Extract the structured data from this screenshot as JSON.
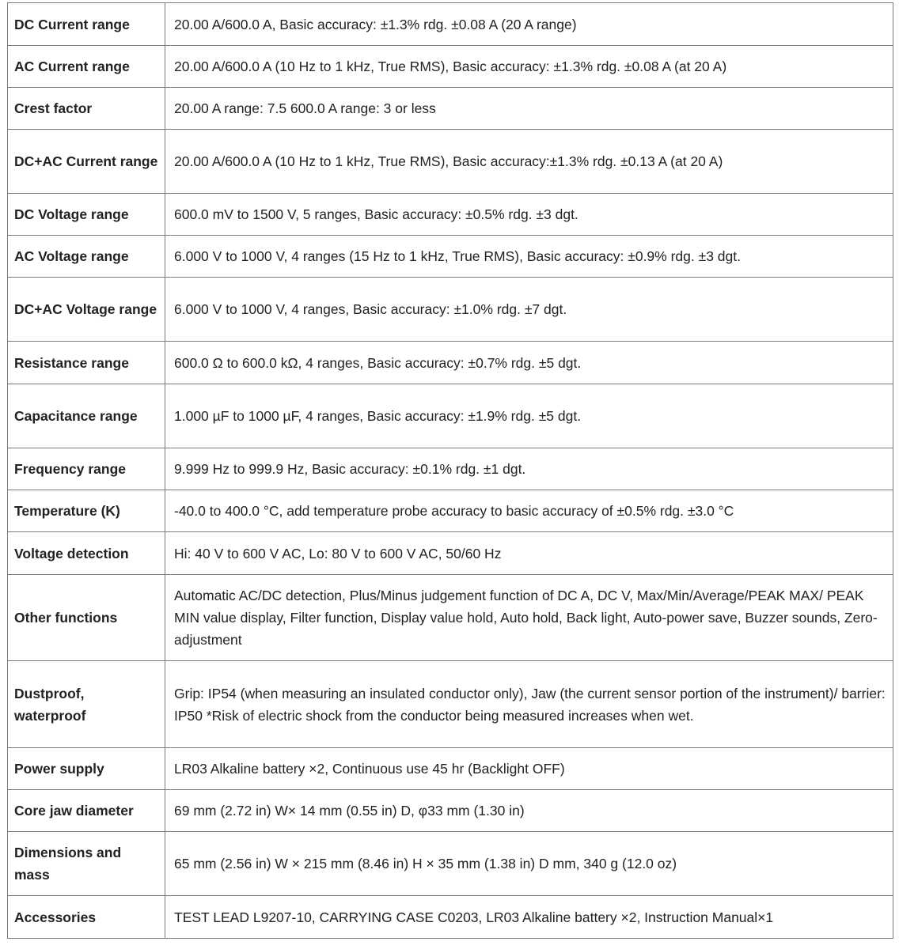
{
  "specs": [
    {
      "label": "DC Current range",
      "value": "20.00 A/600.0 A, Basic accuracy: ±1.3% rdg. ±0.08 A (20 A range)"
    },
    {
      "label": "AC Current range",
      "value": "20.00 A/600.0 A (10 Hz to 1 kHz, True RMS), Basic accuracy: ±1.3% rdg. ±0.08 A (at 20 A)"
    },
    {
      "label": "Crest factor",
      "value": "20.00 A range: 7.5 600.0 A range: 3 or less"
    },
    {
      "label": "DC+AC Current range",
      "value": "20.00 A/600.0 A (10 Hz to 1 kHz, True RMS), Basic accuracy:±1.3% rdg. ±0.13 A (at 20 A)"
    },
    {
      "label": "DC Voltage range",
      "value": "600.0 mV to 1500 V, 5 ranges, Basic accuracy: ±0.5% rdg. ±3 dgt."
    },
    {
      "label": "AC Voltage range",
      "value": "6.000 V to 1000 V, 4 ranges (15 Hz to 1 kHz, True RMS), Basic accuracy: ±0.9% rdg. ±3 dgt."
    },
    {
      "label": "DC+AC Voltage range",
      "value": "6.000 V to 1000 V, 4 ranges, Basic accuracy: ±1.0% rdg. ±7 dgt."
    },
    {
      "label": "Resistance range",
      "value": "600.0 Ω to 600.0 kΩ, 4 ranges, Basic accuracy: ±0.7% rdg. ±5 dgt."
    },
    {
      "label": "Capacitance range",
      "value": "1.000 µF to 1000 µF, 4 ranges, Basic accuracy: ±1.9% rdg. ±5 dgt."
    },
    {
      "label": "Frequency range",
      "value": "9.999 Hz to 999.9 Hz, Basic accuracy: ±0.1% rdg. ±1 dgt."
    },
    {
      "label": "Temperature (K)",
      "value": "-40.0 to 400.0 °C, add temperature probe accuracy to basic accuracy of ±0.5% rdg. ±3.0 °C"
    },
    {
      "label": "Voltage detection",
      "value": "Hi: 40 V to 600 V AC, Lo: 80 V to 600 V AC, 50/60 Hz"
    },
    {
      "label": "Other functions",
      "value": "Automatic AC/DC detection, Plus/Minus judgement function of DC A, DC V, Max/Min/Average/PEAK MAX/ PEAK MIN value display, Filter function, Display value hold, Auto hold, Back light, Auto-power save, Buzzer sounds, Zero-adjustment"
    },
    {
      "label": "Dustproof, waterproof",
      "value": "Grip: IP54 (when measuring an insulated conductor only), Jaw (the current sensor portion of the instrument)/ barrier: IP50 *Risk of electric shock from the conductor being measured increases when wet."
    },
    {
      "label": "Power supply",
      "value": "LR03 Alkaline battery ×2, Continuous use 45 hr (Backlight OFF)"
    },
    {
      "label": "Core jaw diameter",
      "value": "69 mm (2.72 in) W× 14 mm (0.55 in) D, φ33 mm (1.30 in)"
    },
    {
      "label": "Dimensions and mass",
      "value": "65 mm (2.56 in) W × 215 mm (8.46 in) H × 35 mm (1.38 in) D mm, 340 g (12.0 oz)"
    },
    {
      "label": "Accessories",
      "value": "TEST LEAD L9207-10, CARRYING CASE C0203, LR03 Alkaline battery ×2, Instruction Manual×1"
    }
  ]
}
